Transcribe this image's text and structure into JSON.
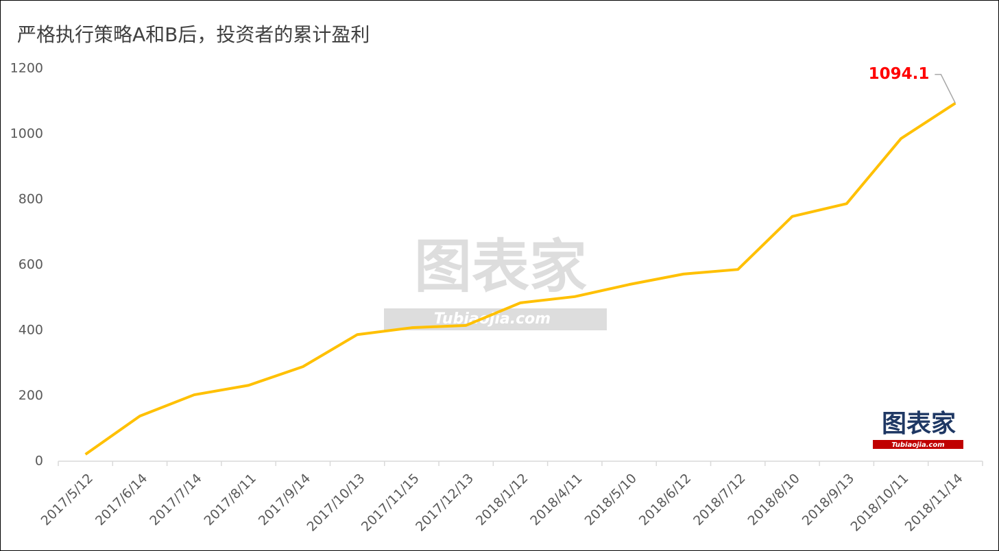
{
  "chart_data": {
    "type": "line",
    "title": "严格执行策略A和B后，投资者的累计盈利",
    "categories": [
      "2017/5/12",
      "2017/6/14",
      "2017/7/14",
      "2017/8/11",
      "2017/9/14",
      "2017/10/13",
      "2017/11/15",
      "2017/12/13",
      "2018/1/12",
      "2018/4/11",
      "2018/5/10",
      "2018/6/12",
      "2018/7/12",
      "2018/8/10",
      "2018/9/13",
      "2018/10/11",
      "2018/11/14"
    ],
    "series": [
      {
        "color": "#FFC000",
        "values": [
          21,
          138,
          203,
          232,
          289,
          387,
          408,
          415,
          484,
          503,
          540,
          572,
          586,
          748,
          787,
          986,
          1094.1
        ]
      }
    ],
    "ylim": [
      0,
      1200
    ],
    "yticks": [
      0,
      200,
      400,
      600,
      800,
      1000,
      1200
    ],
    "grid": false,
    "watermark": {
      "text": "图表家",
      "subtext": "Tubiaojia.com"
    },
    "logo": {
      "text": "图表家",
      "subtext": "Tubiaojia.com"
    }
  }
}
